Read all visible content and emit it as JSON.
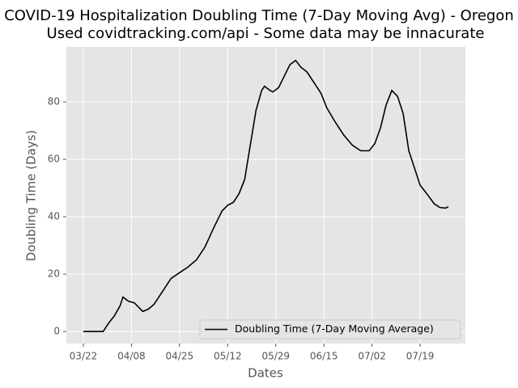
{
  "chart_data": {
    "type": "line",
    "title": "COVID-19 Hospitalization Doubling Time (7-Day Moving Avg) - Oregon",
    "subtitle": "Used covidtracking.com/api - Some data may be innacurate",
    "x_label": "Dates",
    "y_label": "Doubling Time (Days)",
    "x": [
      "03/22",
      "03/26",
      "03/29",
      "03/31",
      "04/02",
      "04/04",
      "04/05",
      "04/07",
      "04/09",
      "04/12",
      "04/14",
      "04/16",
      "04/19",
      "04/22",
      "04/25",
      "04/28",
      "05/01",
      "05/04",
      "05/07",
      "05/10",
      "05/12",
      "05/14",
      "05/16",
      "05/18",
      "05/20",
      "05/22",
      "05/24",
      "05/25",
      "05/27",
      "05/28",
      "05/30",
      "06/01",
      "06/03",
      "06/05",
      "06/07",
      "06/09",
      "06/12",
      "06/14",
      "06/16",
      "06/19",
      "06/22",
      "06/25",
      "06/28",
      "07/01",
      "07/03",
      "07/05",
      "07/07",
      "07/09",
      "07/11",
      "07/13",
      "07/15",
      "07/17",
      "07/19",
      "07/21",
      "07/24",
      "07/26",
      "07/28",
      "07/29"
    ],
    "series": [
      {
        "name": "Doubling Time (7-Day Moving Average)",
        "color": "#000000",
        "values": [
          0,
          0,
          0,
          3,
          5.5,
          9,
          12,
          10.5,
          10,
          7,
          7.8,
          9.5,
          14,
          18.5,
          20.5,
          22.5,
          25,
          29.5,
          36,
          42,
          44,
          45,
          48,
          53,
          65,
          77,
          84,
          85.5,
          84,
          83.5,
          85,
          89,
          93,
          94.5,
          92,
          90.5,
          86,
          83,
          78,
          73,
          68.5,
          65,
          63,
          63,
          65.5,
          71,
          79,
          84,
          82,
          76,
          63,
          57,
          51,
          48.5,
          44.5,
          43.2,
          43,
          43.5
        ]
      }
    ],
    "xlim": [
      "03/16",
      "08/04"
    ],
    "xticks": [
      "03/22",
      "04/08",
      "04/25",
      "05/12",
      "05/29",
      "06/15",
      "07/02",
      "07/19"
    ],
    "ylim": [
      -4.2,
      99.2
    ],
    "yticks": [
      0,
      20,
      40,
      60,
      80
    ],
    "grid": true,
    "legend": "lower right"
  }
}
